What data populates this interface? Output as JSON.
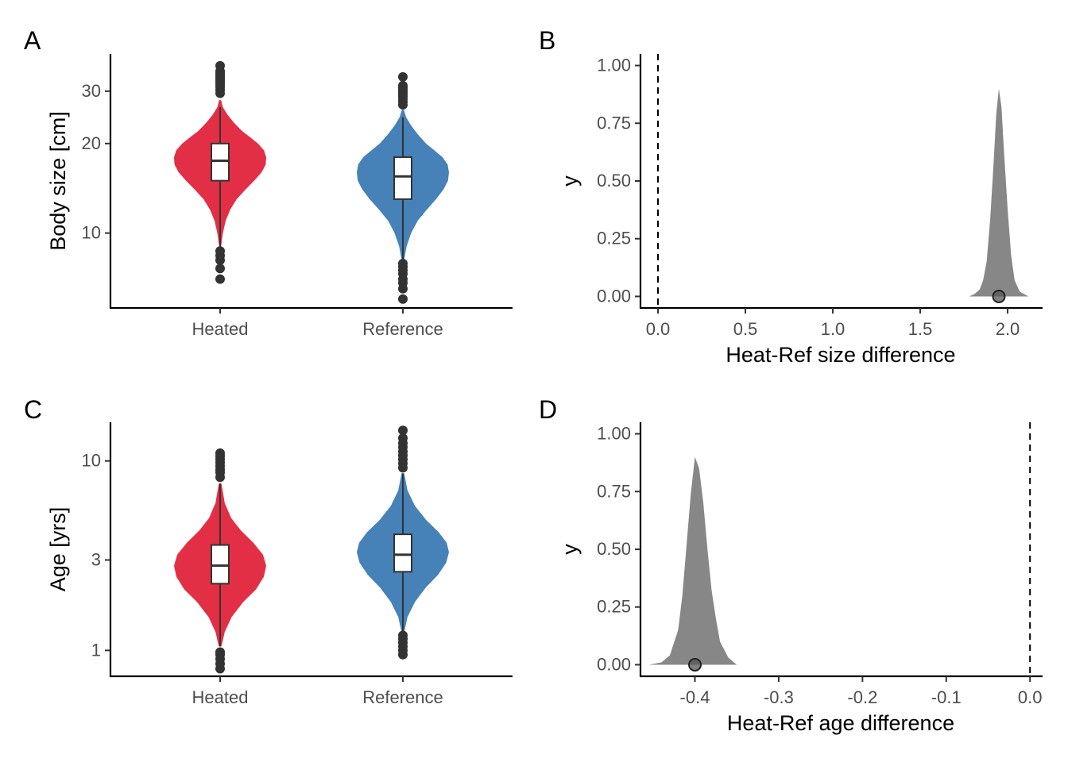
{
  "colors": {
    "heated": "#E32F45",
    "reference": "#4682B8",
    "posterior_fill": "#878787",
    "axis": "#000000",
    "points": "#333333"
  },
  "chart_data": [
    {
      "panel": "A",
      "type": "violin",
      "ylabel": "Body size [cm]",
      "xlabel": "",
      "y_scale": "log",
      "y_ticks": [
        10,
        20,
        30
      ],
      "ylim": [
        5.6,
        40
      ],
      "categories": [
        "Heated",
        "Reference"
      ],
      "groups": [
        {
          "category": "Heated",
          "color": "#E32F45",
          "median": 17.5,
          "q1": 15.0,
          "q3": 20.0,
          "whisker_low": 9.0,
          "whisker_high": 26.5,
          "density_profile": [
            [
              9.0,
              0.02
            ],
            [
              10.0,
              0.06
            ],
            [
              11.0,
              0.12
            ],
            [
              12.0,
              0.22
            ],
            [
              13.0,
              0.36
            ],
            [
              14.0,
              0.55
            ],
            [
              15.0,
              0.74
            ],
            [
              16.0,
              0.9
            ],
            [
              17.0,
              0.99
            ],
            [
              18.0,
              1.0
            ],
            [
              19.0,
              0.95
            ],
            [
              20.0,
              0.82
            ],
            [
              21.0,
              0.65
            ],
            [
              22.0,
              0.48
            ],
            [
              23.5,
              0.3
            ],
            [
              25.0,
              0.16
            ],
            [
              26.5,
              0.06
            ],
            [
              28.0,
              0.02
            ]
          ],
          "outliers": [
            7.0,
            7.6,
            8.1,
            8.4,
            8.7,
            29.5,
            30.3,
            31.0,
            31.6,
            32.1,
            32.6,
            33.1,
            33.6,
            34.0,
            34.5,
            35.0,
            36.5
          ]
        },
        {
          "category": "Reference",
          "color": "#4682B8",
          "median": 15.5,
          "q1": 13.0,
          "q3": 18.0,
          "whisker_low": 8.0,
          "whisker_high": 24.5,
          "density_profile": [
            [
              8.0,
              0.02
            ],
            [
              9.0,
              0.08
            ],
            [
              10.0,
              0.18
            ],
            [
              11.0,
              0.32
            ],
            [
              12.0,
              0.52
            ],
            [
              13.0,
              0.72
            ],
            [
              14.0,
              0.88
            ],
            [
              15.0,
              0.98
            ],
            [
              16.0,
              1.0
            ],
            [
              17.0,
              0.97
            ],
            [
              18.0,
              0.86
            ],
            [
              19.0,
              0.68
            ],
            [
              20.0,
              0.5
            ],
            [
              21.5,
              0.32
            ],
            [
              23.0,
              0.18
            ],
            [
              24.5,
              0.07
            ],
            [
              26.0,
              0.02
            ]
          ],
          "outliers": [
            6.0,
            6.5,
            6.8,
            7.0,
            7.3,
            7.5,
            7.7,
            7.9,
            27.0,
            27.6,
            28.2,
            28.8,
            29.3,
            29.8,
            30.3,
            30.8,
            31.3,
            33.5
          ]
        }
      ]
    },
    {
      "panel": "B",
      "type": "area",
      "xlabel": "Heat-Ref size difference",
      "ylabel": "y",
      "x_ticks": [
        0.0,
        0.5,
        1.0,
        1.5,
        2.0
      ],
      "x_tick_labels": [
        "0.0",
        "0.5",
        "1.0",
        "1.5",
        "2.0"
      ],
      "y_ticks": [
        0.0,
        0.25,
        0.5,
        0.75,
        1.0
      ],
      "y_tick_labels": [
        "0.00",
        "0.25",
        "0.50",
        "0.75",
        "1.00"
      ],
      "xlim": [
        -0.1,
        2.2
      ],
      "ylim": [
        -0.05,
        1.05
      ],
      "reference_line_x": 0.0,
      "point_estimate": 1.95,
      "posterior_density": [
        [
          1.78,
          0.0
        ],
        [
          1.81,
          0.01
        ],
        [
          1.84,
          0.03
        ],
        [
          1.86,
          0.07
        ],
        [
          1.88,
          0.15
        ],
        [
          1.9,
          0.33
        ],
        [
          1.92,
          0.58
        ],
        [
          1.935,
          0.79
        ],
        [
          1.95,
          0.9
        ],
        [
          1.965,
          0.82
        ],
        [
          1.98,
          0.62
        ],
        [
          2.0,
          0.38
        ],
        [
          2.02,
          0.18
        ],
        [
          2.04,
          0.07
        ],
        [
          2.07,
          0.02
        ],
        [
          2.12,
          0.0
        ]
      ]
    },
    {
      "panel": "C",
      "type": "violin",
      "ylabel": "Age [yrs]",
      "xlabel": "",
      "y_scale": "log",
      "y_ticks": [
        1,
        3,
        10
      ],
      "ylim": [
        0.73,
        16
      ],
      "categories": [
        "Heated",
        "Reference"
      ],
      "groups": [
        {
          "category": "Heated",
          "color": "#E32F45",
          "median": 2.8,
          "q1": 2.25,
          "q3": 3.6,
          "whisker_low": 1.05,
          "whisker_high": 7.6,
          "density_profile": [
            [
              1.05,
              0.03
            ],
            [
              1.25,
              0.1
            ],
            [
              1.5,
              0.25
            ],
            [
              1.8,
              0.5
            ],
            [
              2.1,
              0.78
            ],
            [
              2.45,
              0.95
            ],
            [
              2.8,
              1.0
            ],
            [
              3.2,
              0.93
            ],
            [
              3.7,
              0.72
            ],
            [
              4.3,
              0.45
            ],
            [
              5.0,
              0.24
            ],
            [
              6.0,
              0.1
            ],
            [
              7.6,
              0.03
            ]
          ],
          "outliers": [
            0.8,
            0.85,
            0.9,
            0.95,
            0.98,
            8.2,
            8.7,
            9.0,
            9.4,
            9.8,
            10.2,
            10.6,
            11.0
          ]
        },
        {
          "category": "Reference",
          "color": "#4682B8",
          "median": 3.2,
          "q1": 2.6,
          "q3": 4.1,
          "whisker_low": 1.25,
          "whisker_high": 8.6,
          "density_profile": [
            [
              1.25,
              0.03
            ],
            [
              1.5,
              0.1
            ],
            [
              1.8,
              0.26
            ],
            [
              2.15,
              0.5
            ],
            [
              2.5,
              0.76
            ],
            [
              2.9,
              0.94
            ],
            [
              3.3,
              1.0
            ],
            [
              3.7,
              0.95
            ],
            [
              4.2,
              0.78
            ],
            [
              4.9,
              0.5
            ],
            [
              5.8,
              0.26
            ],
            [
              7.0,
              0.1
            ],
            [
              8.6,
              0.03
            ]
          ],
          "outliers": [
            0.95,
            1.0,
            1.05,
            1.1,
            1.15,
            1.2,
            9.2,
            9.7,
            10.2,
            10.7,
            11.2,
            11.8,
            12.4,
            13.2,
            14.5
          ]
        }
      ]
    },
    {
      "panel": "D",
      "type": "area",
      "xlabel": "Heat-Ref age difference",
      "ylabel": "y",
      "x_ticks": [
        -0.4,
        -0.3,
        -0.2,
        -0.1,
        0.0
      ],
      "x_tick_labels": [
        "-0.4",
        "-0.3",
        "-0.2",
        "-0.1",
        "0.0"
      ],
      "y_ticks": [
        0.0,
        0.25,
        0.5,
        0.75,
        1.0
      ],
      "y_tick_labels": [
        "0.00",
        "0.25",
        "0.50",
        "0.75",
        "1.00"
      ],
      "xlim": [
        -0.465,
        0.015
      ],
      "ylim": [
        -0.05,
        1.05
      ],
      "reference_line_x": 0.0,
      "point_estimate": -0.4,
      "posterior_density": [
        [
          -0.455,
          0.0
        ],
        [
          -0.44,
          0.01
        ],
        [
          -0.43,
          0.04
        ],
        [
          -0.42,
          0.15
        ],
        [
          -0.415,
          0.3
        ],
        [
          -0.41,
          0.52
        ],
        [
          -0.405,
          0.74
        ],
        [
          -0.4,
          0.9
        ],
        [
          -0.395,
          0.85
        ],
        [
          -0.39,
          0.7
        ],
        [
          -0.385,
          0.5
        ],
        [
          -0.38,
          0.32
        ],
        [
          -0.375,
          0.2
        ],
        [
          -0.37,
          0.1
        ],
        [
          -0.36,
          0.03
        ],
        [
          -0.35,
          0.0
        ]
      ]
    }
  ]
}
